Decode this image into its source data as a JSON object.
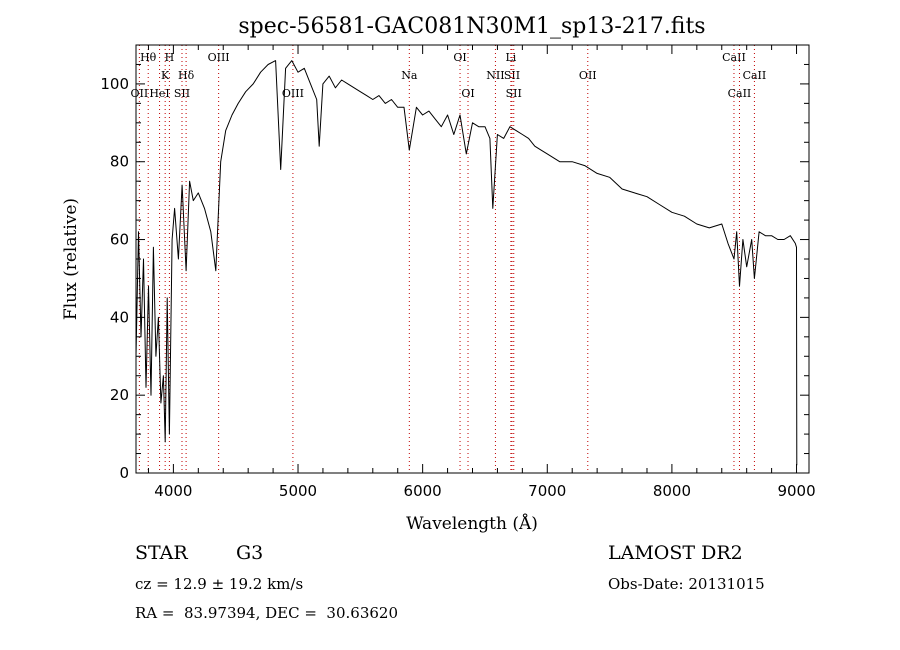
{
  "chart_data": {
    "type": "line",
    "title": "spec-56581-GAC081N30M1_sp13-217.fits",
    "xlabel": "Wavelength (Å)",
    "ylabel": "Flux (relative)",
    "xlim": [
      3700,
      9100
    ],
    "ylim": [
      0,
      110
    ],
    "xticks": [
      4000,
      5000,
      6000,
      7000,
      8000,
      9000
    ],
    "yticks": [
      0,
      20,
      40,
      60,
      80,
      100
    ],
    "xtick_labels": [
      "4000",
      "5000",
      "6000",
      "7000",
      "8000",
      "9000"
    ],
    "ytick_labels": [
      "0",
      "20",
      "40",
      "60",
      "80",
      "100"
    ],
    "grid": false,
    "series": [
      {
        "x": [
          3700,
          3720,
          3740,
          3760,
          3780,
          3800,
          3820,
          3840,
          3860,
          3880,
          3900,
          3920,
          3934,
          3950,
          3968,
          3990,
          4010,
          4040,
          4070,
          4102,
          4130,
          4160,
          4200,
          4250,
          4300,
          4340,
          4380,
          4420,
          4470,
          4520,
          4580,
          4640,
          4700,
          4760,
          4820,
          4861,
          4900,
          4950,
          5000,
          5050,
          5100,
          5150,
          5170,
          5200,
          5250,
          5300,
          5350,
          5400,
          5450,
          5500,
          5550,
          5600,
          5650,
          5700,
          5750,
          5800,
          5850,
          5893,
          5950,
          6000,
          6050,
          6100,
          6150,
          6200,
          6250,
          6300,
          6350,
          6400,
          6450,
          6500,
          6540,
          6563,
          6600,
          6650,
          6700,
          6750,
          6800,
          6850,
          6900,
          6950,
          7000,
          7100,
          7200,
          7300,
          7400,
          7500,
          7600,
          7700,
          7800,
          7900,
          8000,
          8100,
          8200,
          8300,
          8400,
          8450,
          8498,
          8520,
          8542,
          8570,
          8600,
          8640,
          8662,
          8700,
          8750,
          8800,
          8850,
          8900,
          8950,
          8990,
          9000,
          9002
        ],
        "y": [
          30,
          62,
          35,
          55,
          22,
          48,
          20,
          58,
          30,
          40,
          18,
          25,
          8,
          45,
          10,
          60,
          68,
          55,
          74,
          52,
          75,
          70,
          72,
          68,
          62,
          52,
          80,
          88,
          92,
          95,
          98,
          100,
          103,
          105,
          106,
          78,
          104,
          106,
          103,
          104,
          100,
          96,
          84,
          100,
          102,
          99,
          101,
          100,
          99,
          98,
          97,
          96,
          97,
          95,
          96,
          94,
          94,
          83,
          94,
          92,
          93,
          91,
          89,
          92,
          87,
          92,
          82,
          90,
          89,
          89,
          86,
          68,
          87,
          86,
          89,
          88,
          87,
          86,
          84,
          83,
          82,
          80,
          80,
          79,
          77,
          76,
          73,
          72,
          71,
          69,
          67,
          66,
          64,
          63,
          64,
          59,
          55,
          62,
          48,
          60,
          53,
          60,
          50,
          62,
          61,
          61,
          60,
          60,
          61,
          59,
          58,
          2
        ]
      }
    ],
    "line_markers": [
      {
        "label": "Hθ",
        "wavelength": 3798,
        "row": 0
      },
      {
        "label": "H",
        "wavelength": 3968,
        "row": 0
      },
      {
        "label": "K",
        "wavelength": 3934,
        "row": 1
      },
      {
        "label": "Hδ",
        "wavelength": 4102,
        "row": 1
      },
      {
        "label": "OII",
        "wavelength": 3727,
        "row": 2
      },
      {
        "label": "HeI",
        "wavelength": 3889,
        "row": 2
      },
      {
        "label": "SII",
        "wavelength": 4069,
        "row": 2
      },
      {
        "label": "OIII",
        "wavelength": 4363,
        "row": 0
      },
      {
        "label": "OIII",
        "wavelength": 4959,
        "row": 2
      },
      {
        "label": "Na",
        "wavelength": 5893,
        "row": 1
      },
      {
        "label": "OI",
        "wavelength": 6300,
        "row": 0
      },
      {
        "label": "OI",
        "wavelength": 6364,
        "row": 2
      },
      {
        "label": "Li",
        "wavelength": 6708,
        "row": 0
      },
      {
        "label": "NII",
        "wavelength": 6584,
        "row": 1
      },
      {
        "label": "SII",
        "wavelength": 6717,
        "row": 1
      },
      {
        "label": "SII",
        "wavelength": 6731,
        "row": 2
      },
      {
        "label": "OII",
        "wavelength": 7325,
        "row": 1
      },
      {
        "label": "CaII",
        "wavelength": 8498,
        "row": 0
      },
      {
        "label": "CaII",
        "wavelength": 8662,
        "row": 1
      },
      {
        "label": "CaII",
        "wavelength": 8542,
        "row": 2
      }
    ]
  },
  "info": {
    "object_class": "STAR",
    "subclass": "G3",
    "survey": "LAMOST DR2",
    "redshift": "cz = 12.9 ± 19.2 km/s",
    "obs_date": "Obs-Date: 20131015",
    "coords": "RA =  83.97394, DEC =  30.63620"
  }
}
